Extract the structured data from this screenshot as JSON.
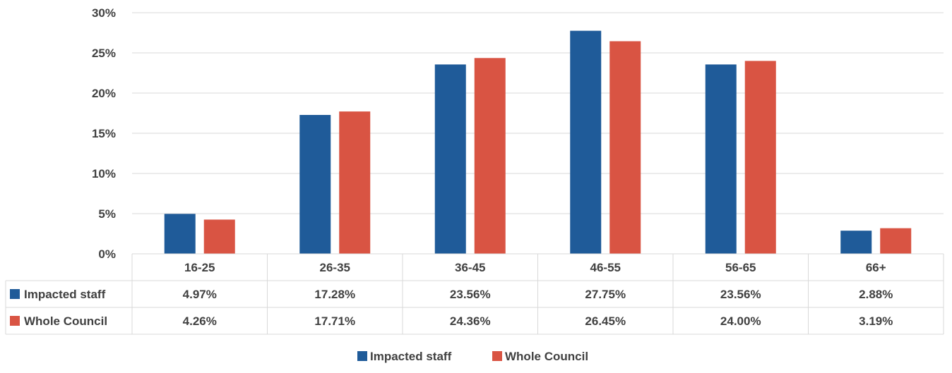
{
  "chart_data": {
    "type": "bar",
    "categories": [
      "16-25",
      "26-35",
      "36-45",
      "46-55",
      "56-65",
      "66+"
    ],
    "series": [
      {
        "name": "Impacted staff",
        "color": "#1F5B99",
        "values": [
          4.97,
          17.28,
          23.56,
          27.75,
          23.56,
          2.88
        ],
        "labels": [
          "4.97%",
          "17.28%",
          "23.56%",
          "27.75%",
          "23.56%",
          "2.88%"
        ]
      },
      {
        "name": "Whole Council",
        "color": "#D95443",
        "values": [
          4.26,
          17.71,
          24.36,
          26.45,
          24.0,
          3.19
        ],
        "labels": [
          "4.26%",
          "17.71%",
          "24.36%",
          "26.45%",
          "24.00%",
          "3.19%"
        ]
      }
    ],
    "ylim": [
      0,
      30
    ],
    "yticks": [
      "0%",
      "5%",
      "10%",
      "15%",
      "20%",
      "25%",
      "30%"
    ],
    "grid": true,
    "data_table": true,
    "legend": "bottom-center"
  }
}
